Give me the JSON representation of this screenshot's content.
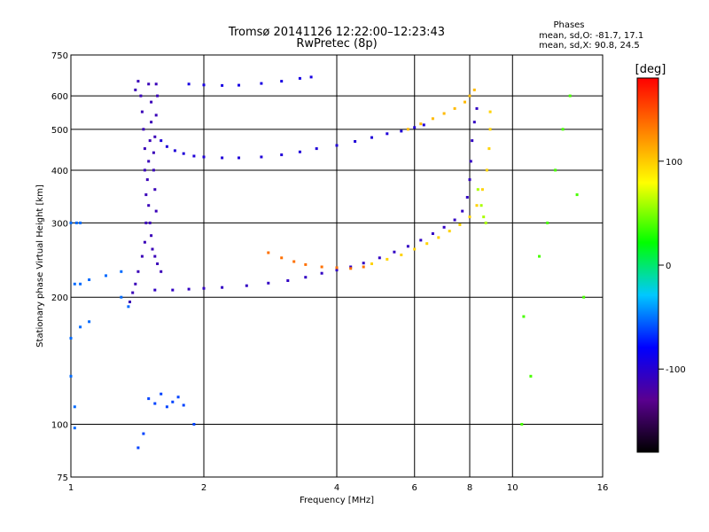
{
  "chart_data": {
    "type": "scatter",
    "title": "Tromsø 20141126 12:22:00–12:23:43",
    "subtitle": "RwPretec (8p)",
    "xlabel": "Frequency [MHz]",
    "ylabel": "Stationary phase Virtual Height [km]",
    "x_scale": "log",
    "y_scale": "log",
    "xlim": [
      1,
      16
    ],
    "ylim": [
      75,
      750
    ],
    "x_ticks": [
      1,
      2,
      4,
      6,
      8,
      10,
      16
    ],
    "x_tick_labels": [
      "1",
      "2",
      "4",
      "6",
      "8",
      "10",
      "16"
    ],
    "y_ticks": [
      75,
      100,
      200,
      300,
      400,
      500,
      600,
      750
    ],
    "y_tick_labels": [
      "75",
      "100",
      "200",
      "300",
      "400",
      "500",
      "600",
      "750"
    ],
    "grid": true,
    "phases_box": {
      "heading": "Phases",
      "line_o": "mean, sd,O: -81.7, 17.1",
      "line_x": "mean, sd,X:  90.8, 24.5"
    },
    "colorbar": {
      "label": "[deg]",
      "range": [
        -180,
        180
      ],
      "ticks": [
        100,
        0,
        -100
      ],
      "tick_labels": [
        "100",
        "0",
        "-100"
      ],
      "colormap": [
        "#000000",
        "#5a0090",
        "#0000ff",
        "#00c8ff",
        "#00ff00",
        "#ffff00",
        "#ff8000",
        "#ff0000"
      ]
    },
    "series": [
      {
        "points": [
          [
            1.42,
            650
          ],
          [
            1.44,
            600
          ],
          [
            1.45,
            550
          ],
          [
            1.46,
            500
          ],
          [
            1.47,
            450
          ],
          [
            1.47,
            400
          ],
          [
            1.48,
            350
          ],
          [
            1.48,
            300
          ],
          [
            1.47,
            270
          ],
          [
            1.45,
            250
          ],
          [
            1.42,
            230
          ],
          [
            1.4,
            215
          ],
          [
            1.38,
            205
          ],
          [
            1.36,
            195
          ],
          [
            1.4,
            620
          ],
          [
            1.5,
            640
          ],
          [
            1.52,
            580
          ],
          [
            1.52,
            520
          ],
          [
            1.51,
            470
          ],
          [
            1.5,
            420
          ],
          [
            1.49,
            380
          ],
          [
            1.5,
            330
          ],
          [
            1.51,
            300
          ],
          [
            1.52,
            280
          ],
          [
            1.53,
            260
          ],
          [
            1.55,
            250
          ],
          [
            1.57,
            240
          ],
          [
            1.6,
            230
          ],
          [
            1.56,
            640
          ],
          [
            1.57,
            600
          ],
          [
            1.56,
            540
          ],
          [
            1.55,
            480
          ],
          [
            1.54,
            440
          ],
          [
            1.54,
            400
          ],
          [
            1.55,
            360
          ],
          [
            1.56,
            320
          ]
        ],
        "phase": -110
      },
      {
        "points": [
          [
            1.6,
            470
          ],
          [
            1.65,
            455
          ],
          [
            1.72,
            445
          ],
          [
            1.8,
            438
          ],
          [
            1.9,
            432
          ],
          [
            2.0,
            430
          ],
          [
            2.2,
            428
          ],
          [
            2.4,
            428
          ],
          [
            2.7,
            430
          ],
          [
            3.0,
            435
          ],
          [
            3.3,
            442
          ],
          [
            3.6,
            450
          ],
          [
            4.0,
            458
          ],
          [
            4.4,
            468
          ],
          [
            4.8,
            478
          ],
          [
            5.2,
            488
          ],
          [
            5.6,
            495
          ],
          [
            6.0,
            505
          ],
          [
            6.3,
            512
          ]
        ],
        "phase": -95
      },
      {
        "points": [
          [
            1.85,
            640
          ],
          [
            2.0,
            637
          ],
          [
            2.2,
            635
          ],
          [
            2.4,
            636
          ],
          [
            2.7,
            642
          ],
          [
            3.0,
            650
          ],
          [
            3.3,
            660
          ],
          [
            3.5,
            665
          ]
        ],
        "phase": -90
      },
      {
        "points": [
          [
            1.55,
            208
          ],
          [
            1.7,
            208
          ],
          [
            1.85,
            209
          ],
          [
            2.0,
            210
          ],
          [
            2.2,
            211
          ],
          [
            2.5,
            213
          ],
          [
            2.8,
            216
          ],
          [
            3.1,
            219
          ],
          [
            3.4,
            223
          ],
          [
            3.7,
            228
          ],
          [
            4.0,
            232
          ],
          [
            4.3,
            236
          ],
          [
            4.6,
            241
          ],
          [
            5.0,
            248
          ],
          [
            5.4,
            256
          ],
          [
            5.8,
            264
          ],
          [
            6.2,
            273
          ],
          [
            6.6,
            283
          ],
          [
            7.0,
            293
          ],
          [
            7.4,
            305
          ],
          [
            7.7,
            320
          ],
          [
            7.9,
            345
          ],
          [
            8.0,
            380
          ],
          [
            8.05,
            420
          ],
          [
            8.1,
            470
          ],
          [
            8.2,
            520
          ],
          [
            8.3,
            560
          ]
        ],
        "phase": -105
      },
      {
        "points": [
          [
            2.8,
            255
          ],
          [
            3.0,
            248
          ],
          [
            3.2,
            243
          ],
          [
            3.4,
            239
          ],
          [
            3.7,
            236
          ],
          [
            4.0,
            235
          ],
          [
            4.3,
            234
          ],
          [
            4.6,
            236
          ]
        ],
        "phase": 135
      },
      {
        "points": [
          [
            4.8,
            240
          ],
          [
            5.2,
            246
          ],
          [
            5.6,
            252
          ],
          [
            6.0,
            260
          ],
          [
            6.4,
            268
          ],
          [
            6.8,
            277
          ],
          [
            7.2,
            287
          ],
          [
            7.6,
            297
          ],
          [
            8.0,
            310
          ],
          [
            8.3,
            330
          ],
          [
            8.55,
            360
          ],
          [
            8.75,
            400
          ],
          [
            8.85,
            450
          ],
          [
            8.9,
            500
          ],
          [
            8.9,
            550
          ]
        ],
        "phase": 95
      },
      {
        "points": [
          [
            5.8,
            500
          ],
          [
            6.2,
            515
          ],
          [
            6.6,
            530
          ],
          [
            7.0,
            545
          ],
          [
            7.4,
            560
          ],
          [
            7.8,
            580
          ],
          [
            8.0,
            600
          ],
          [
            8.2,
            620
          ]
        ],
        "phase": 105
      },
      {
        "points": [
          [
            8.35,
            360
          ],
          [
            8.5,
            330
          ],
          [
            8.6,
            310
          ],
          [
            8.7,
            300
          ]
        ],
        "phase": 60
      },
      {
        "points": [
          [
            1.0,
            300
          ],
          [
            1.03,
            300
          ],
          [
            1.05,
            300
          ],
          [
            1.02,
            215
          ],
          [
            1.05,
            215
          ],
          [
            1.1,
            220
          ],
          [
            1.2,
            225
          ],
          [
            1.3,
            230
          ],
          [
            1.0,
            160
          ],
          [
            1.05,
            170
          ],
          [
            1.1,
            175
          ],
          [
            1.0,
            130
          ],
          [
            1.02,
            110
          ],
          [
            1.02,
            98
          ],
          [
            1.3,
            200
          ],
          [
            1.35,
            190
          ]
        ],
        "phase": -50
      },
      {
        "points": [
          [
            1.5,
            115
          ],
          [
            1.55,
            112
          ],
          [
            1.6,
            118
          ],
          [
            1.65,
            110
          ],
          [
            1.7,
            113
          ],
          [
            1.75,
            116
          ],
          [
            1.8,
            111
          ],
          [
            1.9,
            100
          ],
          [
            1.42,
            88
          ],
          [
            1.46,
            95
          ]
        ],
        "phase": -60
      },
      {
        "points": [
          [
            10.5,
            100
          ],
          [
            10.6,
            180
          ],
          [
            11.0,
            130
          ],
          [
            11.5,
            250
          ],
          [
            12.0,
            300
          ],
          [
            12.5,
            400
          ],
          [
            13.0,
            500
          ],
          [
            13.5,
            600
          ],
          [
            14.0,
            350
          ],
          [
            14.5,
            200
          ]
        ],
        "phase": 40
      }
    ]
  }
}
